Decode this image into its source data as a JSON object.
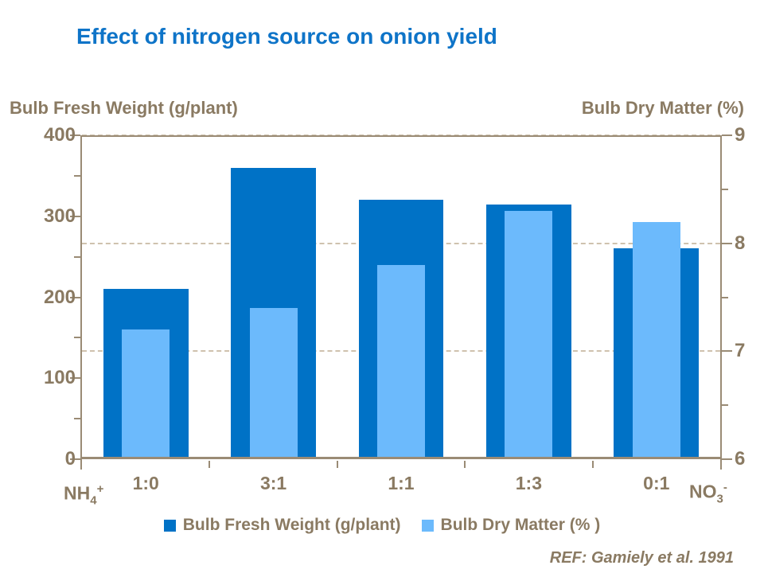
{
  "title": "Effect of nitrogen source on onion yield",
  "axes_headers": {
    "left": "Bulb Fresh Weight (g/plant)",
    "right": "Bulb Dry Matter (%)"
  },
  "x_axis": {
    "end_left": {
      "base": "NH",
      "sub": "4",
      "sup": "+"
    },
    "end_right": {
      "base": "NO",
      "sub": "3",
      "sup": "-"
    }
  },
  "legend": {
    "items": [
      {
        "label": "Bulb Fresh Weight (g/plant)",
        "color": "#0072C6"
      },
      {
        "label": "Bulb Dry Matter (% )",
        "color": "#6CBAFC"
      }
    ]
  },
  "footnote": "REF: Gamiely et al.  1991",
  "colors": {
    "title": "#0E74C8",
    "text": "#8A7A62",
    "axis_line": "#9A8B75",
    "gridline": "#CFC2AE",
    "fresh_weight_bar": "#0072C6",
    "dry_matter_bar": "#6CBAFC"
  },
  "chart_data": {
    "type": "bar",
    "title": "Effect of nitrogen source on onion yield",
    "categories": [
      "1:0",
      "3:1",
      "1:1",
      "1:3",
      "0:1"
    ],
    "x_end_labels": {
      "left": "NH4+",
      "right": "NO3-"
    },
    "series": [
      {
        "name": "Bulb Fresh Weight (g/plant)",
        "axis": "left",
        "color": "#0072C6",
        "values": [
          210,
          360,
          320,
          315,
          260
        ]
      },
      {
        "name": "Bulb Dry Matter (%)",
        "axis": "right",
        "color": "#6CBAFC",
        "values": [
          7.2,
          7.4,
          7.8,
          8.3,
          8.2
        ]
      }
    ],
    "left_axis": {
      "label": "Bulb Fresh Weight (g/plant)",
      "min": 0,
      "max": 400,
      "major_ticks": [
        400,
        300,
        200,
        100,
        0
      ],
      "minor_ticks": [
        350,
        250,
        150,
        50
      ]
    },
    "right_axis": {
      "label": "Bulb Dry Matter (%)",
      "min": 6,
      "max": 9,
      "major_ticks": [
        9,
        8,
        7,
        6
      ],
      "minor_ticks": [
        8.5,
        7.5,
        6.5
      ]
    },
    "gridlines": {
      "right_axis_values": [
        9,
        8,
        7
      ],
      "style": "dashed"
    },
    "legend_position": "bottom",
    "reference": "REF: Gamiely et al.  1991"
  }
}
